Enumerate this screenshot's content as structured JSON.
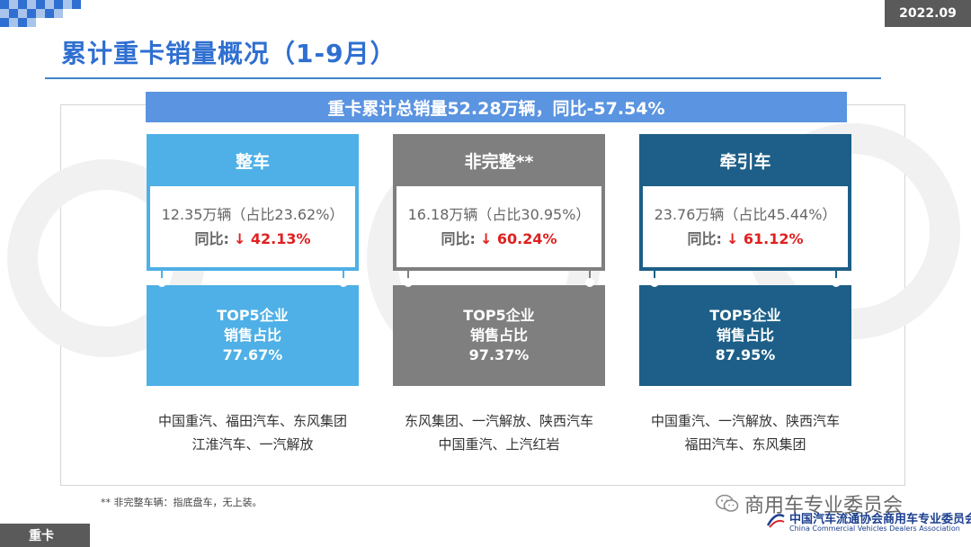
{
  "date": "2022.09",
  "title": "累计重卡销量概况（1-9月）",
  "banner": "重卡累计总销量52.28万辆，同比-57.54%",
  "columns": [
    {
      "head": "整车",
      "volume": "12.35万辆（占比23.62%）",
      "yoy_label": "同比:",
      "yoy_value": "↓ 42.13%",
      "top5_l1": "TOP5企业",
      "top5_l2": "销售占比",
      "top5_share": "77.67%",
      "companies_l1": "中国重汽、福田汽车、东风集团",
      "companies_l2": "江淮汽车、一汽解放",
      "color": "#4eb0e6"
    },
    {
      "head": "非完整**",
      "volume": "16.18万辆（占比30.95%）",
      "yoy_label": "同比:",
      "yoy_value": "↓ 60.24%",
      "top5_l1": "TOP5企业",
      "top5_l2": "销售占比",
      "top5_share": "97.37%",
      "companies_l1": "东风集团、一汽解放、陕西汽车",
      "companies_l2": "中国重汽、上汽红岩",
      "color": "#7f7f7f"
    },
    {
      "head": "牵引车",
      "volume": "23.76万辆（占比45.44%）",
      "yoy_label": "同比:",
      "yoy_value": "↓ 61.12%",
      "top5_l1": "TOP5企业",
      "top5_l2": "销售占比",
      "top5_share": "87.95%",
      "companies_l1": "中国重汽、一汽解放、陕西汽车",
      "companies_l2": "福田汽车、东风集团",
      "color": "#1d5f88"
    }
  ],
  "footnote": "** 非完整车辆：指底盘车，无上装。",
  "bottom_tag": "重卡",
  "wechat_name": "商用车专业委员会",
  "assoc_cn": "中国汽车流通协会商用车专业委员会",
  "assoc_en": "China Commercial Vehicles Dealers Association"
}
